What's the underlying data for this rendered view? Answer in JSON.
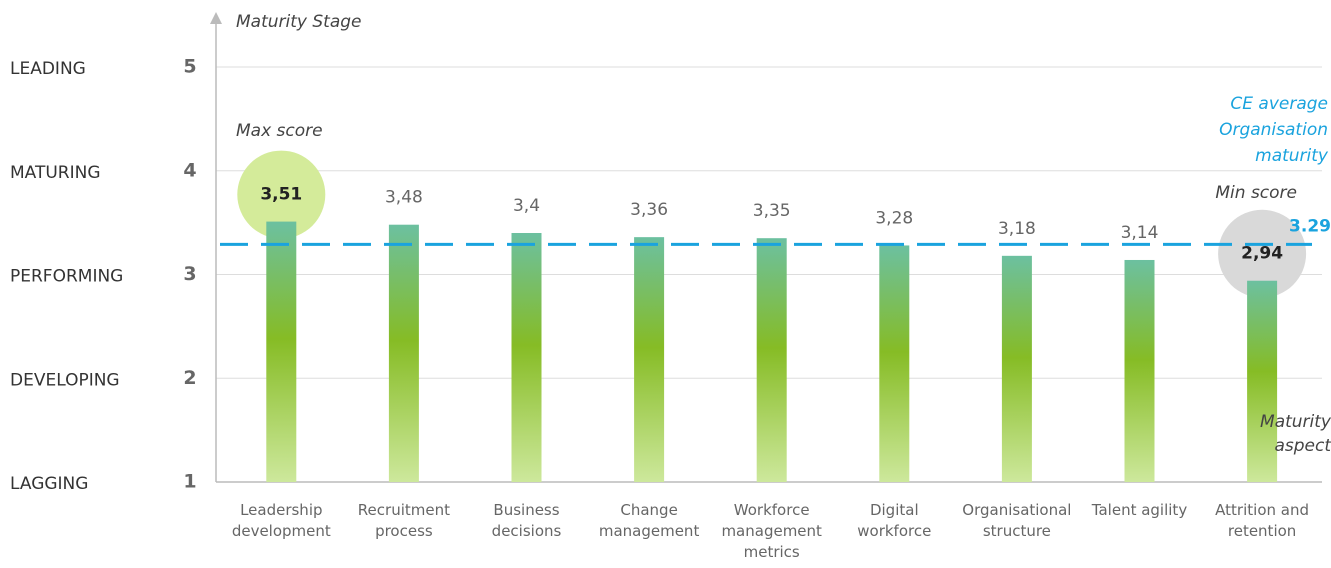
{
  "chart_data": {
    "type": "bar",
    "y_axis_label": "Maturity Stage",
    "x_axis_label": [
      "Maturity",
      "aspect"
    ],
    "categories": [
      "Leadership development",
      "Recruitment process",
      "Business decisions",
      "Change management",
      "Workforce management metrics",
      "Digital workforce",
      "Organisational structure",
      "Talent agility",
      "Attrition and retention"
    ],
    "values": [
      3.51,
      3.48,
      3.4,
      3.36,
      3.35,
      3.28,
      3.18,
      3.14,
      2.94
    ],
    "value_labels": [
      "3,51",
      "3,48",
      "3,4",
      "3,36",
      "3,35",
      "3,28",
      "3,18",
      "3,14",
      "2,94"
    ],
    "ylim": [
      1,
      5
    ],
    "yticks": [
      1,
      2,
      3,
      4,
      5
    ],
    "stage_labels": [
      "LAGGING",
      "DEVELOPING",
      "PERFORMING",
      "MATURING",
      "LEADING"
    ],
    "grid": true,
    "average": {
      "value": 3.29,
      "label": [
        "CE average",
        "Organisation",
        "maturity"
      ],
      "color": "#1aa3de"
    },
    "max_label": "Max score",
    "min_label": "Min score",
    "colors": {
      "top": "#6cc0a0",
      "middle": "#86bc25",
      "bottom": "#cde89c",
      "max_highlight": "#d4eb9a",
      "min_highlight": "#d9d9d9"
    }
  }
}
